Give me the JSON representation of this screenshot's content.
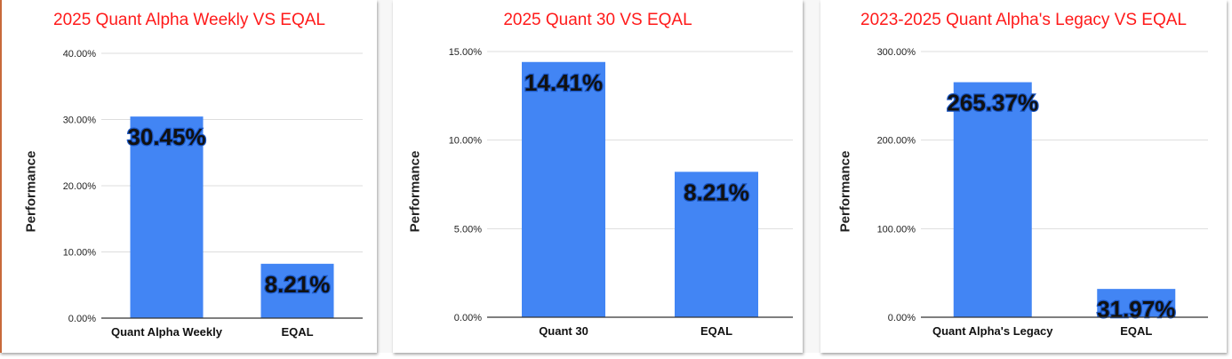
{
  "colors": {
    "title": "#ff1a1a",
    "bar": "#4285f4",
    "grid": "#dddddd",
    "axis": "#333333"
  },
  "chart_data": [
    {
      "type": "bar",
      "title": "2025 Quant Alpha Weekly VS EQAL",
      "ylabel": "Performance",
      "xlabel": "",
      "categories": [
        "Quant Alpha Weekly",
        "EQAL"
      ],
      "values": [
        30.45,
        8.21
      ],
      "data_labels": [
        "30.45%",
        "8.21%"
      ],
      "ylim": [
        0,
        40
      ],
      "yticks": [
        0,
        10,
        20,
        30,
        40
      ],
      "ytick_labels": [
        "0.00%",
        "10.00%",
        "20.00%",
        "30.00%",
        "40.00%"
      ],
      "grid": true,
      "legend": "none"
    },
    {
      "type": "bar",
      "title": "2025 Quant 30 VS EQAL",
      "ylabel": "Performance",
      "xlabel": "",
      "categories": [
        "Quant 30",
        "EQAL"
      ],
      "values": [
        14.41,
        8.21
      ],
      "data_labels": [
        "14.41%",
        "8.21%"
      ],
      "ylim": [
        0,
        15
      ],
      "yticks": [
        0,
        5,
        10,
        15
      ],
      "ytick_labels": [
        "0.00%",
        "5.00%",
        "10.00%",
        "15.00%"
      ],
      "grid": true,
      "legend": "none"
    },
    {
      "type": "bar",
      "title": "2023-2025 Quant Alpha's Legacy VS EQAL",
      "ylabel": "Performance",
      "xlabel": "",
      "categories": [
        "Quant Alpha's Legacy",
        "EQAL"
      ],
      "values": [
        265.37,
        31.97
      ],
      "data_labels": [
        "265.37%",
        "31.97%"
      ],
      "ylim": [
        0,
        300
      ],
      "yticks": [
        0,
        100,
        200,
        300
      ],
      "ytick_labels": [
        "0.00%",
        "100.00%",
        "200.00%",
        "300.00%"
      ],
      "grid": true,
      "legend": "none"
    }
  ]
}
